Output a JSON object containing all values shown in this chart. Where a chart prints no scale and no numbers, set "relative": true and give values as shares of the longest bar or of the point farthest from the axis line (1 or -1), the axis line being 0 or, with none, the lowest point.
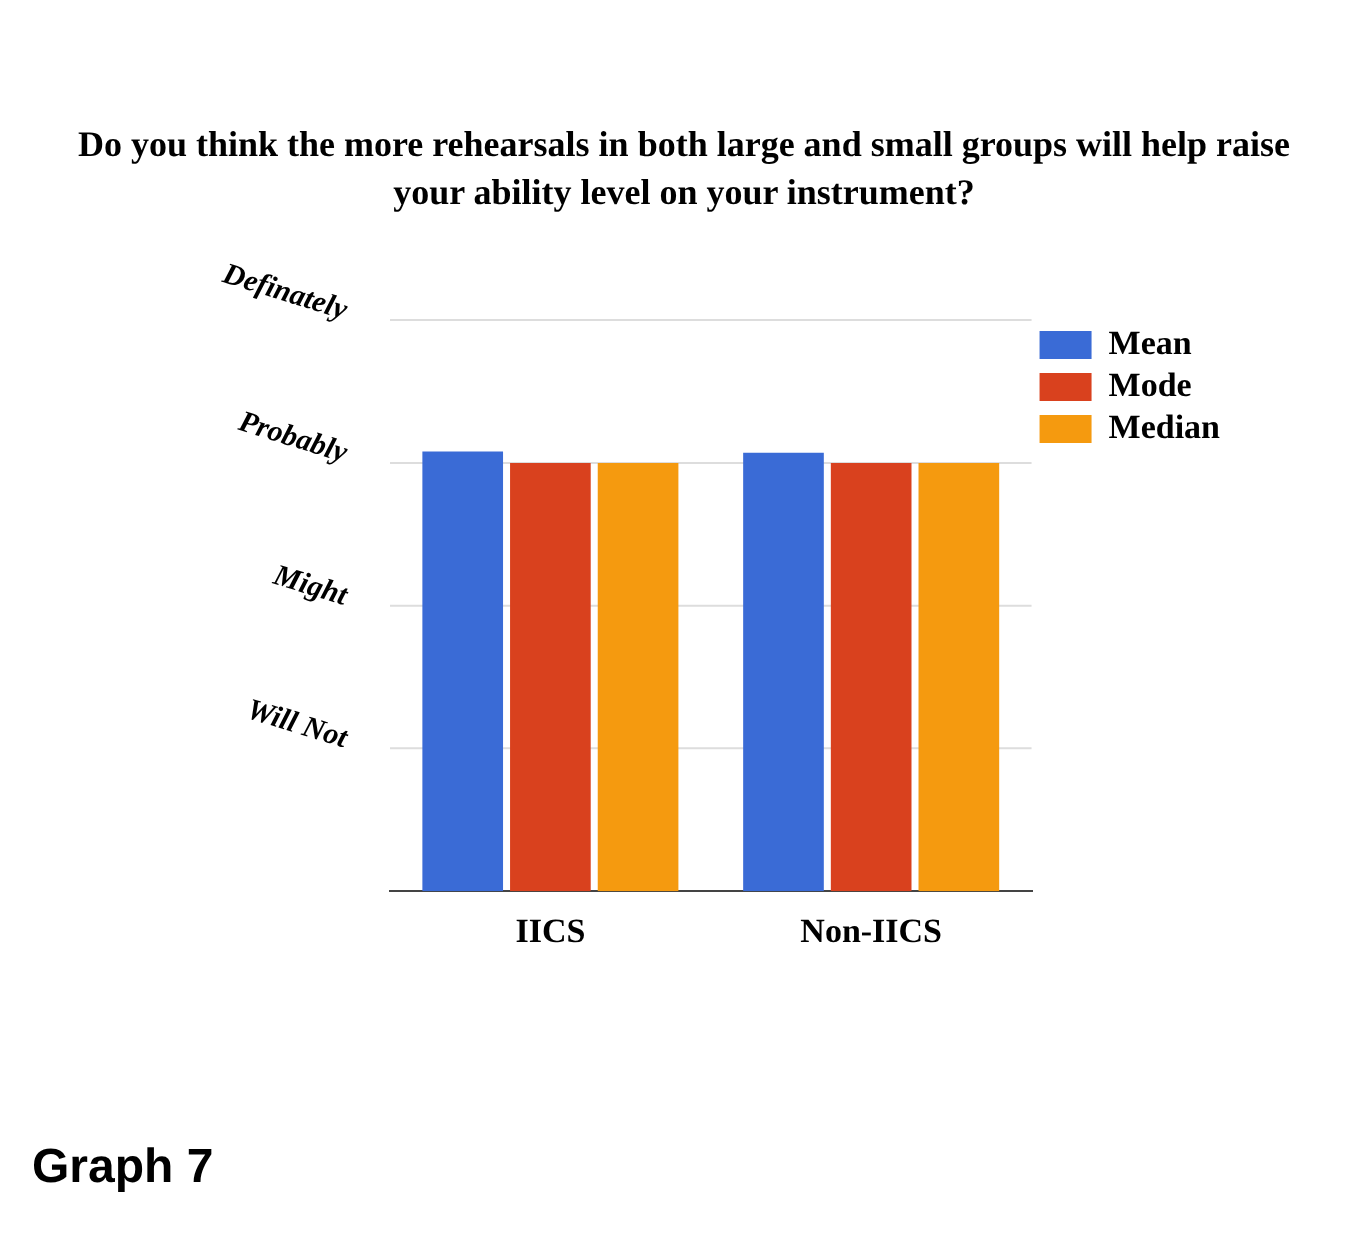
{
  "chart_data": {
    "type": "bar",
    "title": "Do you think the more rehearsals in both large and small groups will help raise your ability level on your instrument?",
    "categories": [
      "IICS",
      "Non-IICS"
    ],
    "series": [
      {
        "name": "Mean",
        "color": "#3a6bd6",
        "values": [
          1,
          0.997
        ]
      },
      {
        "name": "Mode",
        "color": "#d9411e",
        "values": [
          0.974,
          0.974
        ]
      },
      {
        "name": "Median",
        "color": "#f59a0f",
        "values": [
          0.974,
          0.974
        ]
      }
    ],
    "relative": true,
    "ref_lines": [
      {
        "axis": "y",
        "value": 0.325,
        "label": "Will Not",
        "color": "#dddddd"
      },
      {
        "axis": "y",
        "value": 0.649,
        "label": "Might",
        "color": "#dddddd"
      },
      {
        "axis": "y",
        "value": 0.974,
        "label": "Probably",
        "color": "#dddddd"
      },
      {
        "axis": "y",
        "value": 1.299,
        "label": "Definately",
        "color": "#dddddd"
      }
    ],
    "legend": "top right",
    "annotations": [
      "Graph 7"
    ]
  }
}
